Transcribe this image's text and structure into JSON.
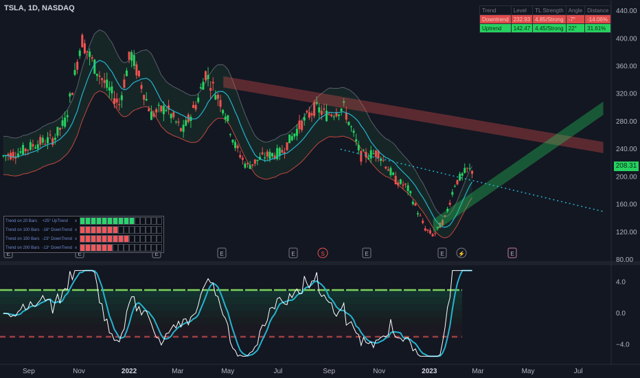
{
  "header": {
    "title": "TSLA, 1D, NASDAQ"
  },
  "chart_data": [
    {
      "type": "line",
      "title": "TSLA, 1D, NASDAQ",
      "xlabel": "",
      "ylabel": "",
      "x_ticks": [
        "Sep",
        "Nov",
        "2022",
        "Mar",
        "May",
        "Jul",
        "Sep",
        "Nov",
        "2023",
        "Mar",
        "May",
        "Jul"
      ],
      "y_ticks": [
        80,
        120,
        160,
        200,
        240,
        280,
        320,
        360,
        400,
        440
      ],
      "ylim": [
        80,
        450
      ],
      "last_price": "208.31",
      "series": [
        {
          "x": [
            "2021-08-01",
            "2021-08-20",
            "2021-09-10",
            "2021-10-01",
            "2021-10-15",
            "2021-10-26",
            "2021-11-04",
            "2021-11-20",
            "2021-12-05",
            "2021-12-20",
            "2022-01-03",
            "2022-01-28",
            "2022-02-15",
            "2022-03-07",
            "2022-03-25",
            "2022-04-04",
            "2022-04-26",
            "2022-05-10",
            "2022-05-24",
            "2022-06-15",
            "2022-07-05",
            "2022-07-25",
            "2022-08-15",
            "2022-08-29",
            "2022-09-19",
            "2022-10-10",
            "2022-10-31",
            "2022-11-21",
            "2022-12-05",
            "2022-12-27",
            "2023-01-06",
            "2023-01-20",
            "2023-02-01",
            "2023-02-16",
            "2023-02-24"
          ],
          "values": [
            230,
            235,
            248,
            255,
            280,
            340,
            400,
            360,
            330,
            305,
            380,
            290,
            300,
            265,
            310,
            350,
            300,
            245,
            215,
            230,
            235,
            270,
            300,
            290,
            300,
            230,
            235,
            195,
            185,
            125,
            115,
            140,
            190,
            210,
            208
          ]
        }
      ],
      "annotations": {
        "downtrend_channel": {
          "start": [
            "2022-04-26",
            335
          ],
          "end": [
            "2023-07-31",
            240
          ]
        },
        "uptrend_channel": {
          "start": [
            "2023-01-06",
            120
          ],
          "end": [
            "2023-07-31",
            290
          ]
        },
        "dotted_trendline": {
          "start": [
            "2022-09-15",
            240
          ],
          "end": [
            "2023-07-31",
            150
          ]
        },
        "event_markers": [
          "E",
          "E",
          "E",
          "E",
          "E",
          "S",
          "E",
          "E",
          "E",
          "lightning",
          "E"
        ]
      }
    },
    {
      "type": "line",
      "title": "",
      "y_ticks": [
        4.0,
        0.0,
        -4.0
      ],
      "ylim": [
        -6,
        6
      ]
    }
  ],
  "trend_table": {
    "headers": [
      "Trend",
      "Level",
      "TL Strength",
      "Angle",
      "Distance"
    ],
    "rows": [
      [
        "Downtrend",
        "232.93",
        "4.85/Strong",
        "-7°",
        "-14.06%"
      ],
      [
        "Uptrend",
        "142.47",
        "4.45/Strong",
        "22°",
        "31.61%"
      ]
    ]
  },
  "bars_table": {
    "rows": [
      {
        "label": "Trend on 20 Bars",
        "value": "+25° UpTrend",
        "mark": "x",
        "filled": 10,
        "color": "#29d66c"
      },
      {
        "label": "Trend on 100 Bars",
        "value": "-16° DownTrend",
        "mark": "x",
        "filled": 7,
        "color": "#f0575b"
      },
      {
        "label": "Trend on 150 Bars",
        "value": "-23° DownTrend",
        "mark": "x",
        "filled": 9,
        "color": "#f0575b"
      },
      {
        "label": "Trend on 200 Bars",
        "value": "-13° DownTrend",
        "mark": "x",
        "filled": 6,
        "color": "#f0575b"
      }
    ]
  },
  "colors": {
    "up": "#26d160",
    "down": "#ef5350",
    "ma": "#26b5d1",
    "bg": "#131722"
  }
}
